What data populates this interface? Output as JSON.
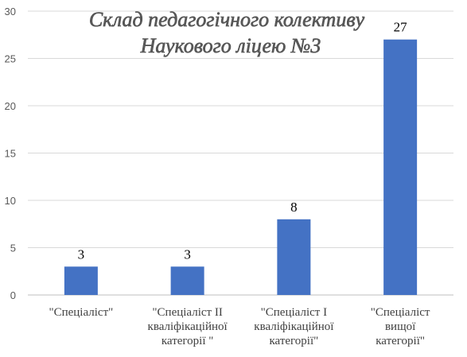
{
  "chart_data": {
    "type": "bar",
    "title_lines": [
      "Склад педагогічного колективу",
      "Наукового ліцею №3"
    ],
    "categories": [
      [
        "\"Спеціаліст\""
      ],
      [
        "\"Спеціаліст ІІ",
        "кваліфікаційної",
        "категорії \""
      ],
      [
        "\"Спеціаліст І",
        "кваліфікаційної",
        "категорії\""
      ],
      [
        "\"Спеціаліст",
        "вищої",
        "категорії\""
      ]
    ],
    "values": [
      3,
      3,
      8,
      27
    ],
    "data_labels": [
      "3",
      "3",
      "8",
      "27"
    ],
    "yticks": [
      "0",
      "5",
      "10",
      "15",
      "20",
      "25",
      "30"
    ],
    "ylim": [
      0,
      30
    ],
    "grid": true,
    "legend": "none",
    "bar_color": "#4472C4"
  }
}
